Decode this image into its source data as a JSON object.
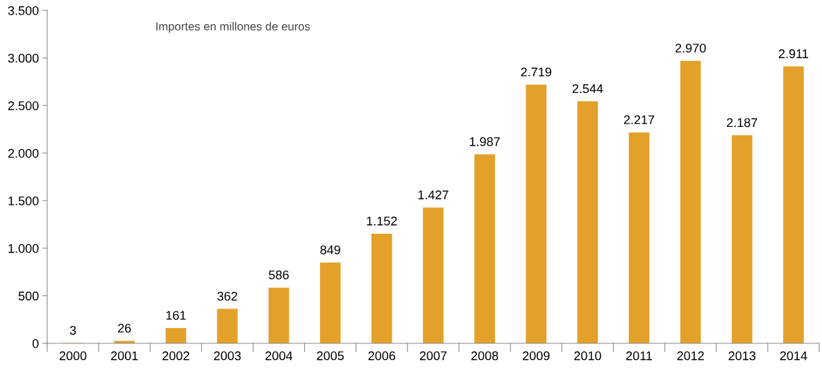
{
  "chart_data": {
    "type": "bar",
    "categories": [
      "2000",
      "2001",
      "2002",
      "2003",
      "2004",
      "2005",
      "2006",
      "2007",
      "2008",
      "2009",
      "2010",
      "2011",
      "2012",
      "2013",
      "2014"
    ],
    "values": [
      3,
      26,
      161,
      362,
      586,
      849,
      1152,
      1427,
      1987,
      2719,
      2544,
      2217,
      2970,
      2187,
      2911
    ],
    "value_labels": [
      "3",
      "26",
      "161",
      "362",
      "586",
      "849",
      "1.152",
      "1.427",
      "1.987",
      "2.719",
      "2.544",
      "2.217",
      "2.970",
      "2.187",
      "2.911"
    ],
    "color": "#e3a12a",
    "ylim": [
      0,
      3500
    ],
    "yticks": [
      0,
      500,
      {
        "value": 1000,
        "label": "1.000"
      },
      {
        "value": 1500,
        "label": "1.500"
      },
      {
        "value": 2000,
        "label": "2.000"
      },
      {
        "value": 2500,
        "label": "2.500"
      },
      {
        "value": 3000,
        "label": "3.000"
      },
      {
        "value": 3500,
        "label": "3.500"
      }
    ],
    "annotations": [
      "Importes en millones de euros"
    ],
    "grid": false,
    "legend": false
  }
}
